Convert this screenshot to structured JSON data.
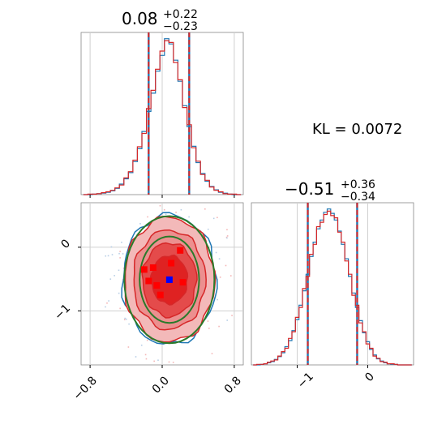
{
  "chart_data": [
    {
      "panel": "top-left",
      "type": "histogram",
      "parameter_title": {
        "value": "0.08",
        "upper": "+0.22",
        "lower": "−0.23"
      },
      "xlim": [
        -0.9,
        0.9
      ],
      "x_ticks": [
        -0.8,
        0.0,
        0.8
      ],
      "grid": true,
      "series": [
        {
          "color": "#1f77b4",
          "bin_centers": [
            -0.85,
            -0.8,
            -0.75,
            -0.7,
            -0.65,
            -0.6,
            -0.55,
            -0.5,
            -0.45,
            -0.4,
            -0.35,
            -0.3,
            -0.25,
            -0.2,
            -0.15,
            -0.1,
            -0.05,
            0.0,
            0.05,
            0.1,
            0.15,
            0.2,
            0.25,
            0.3,
            0.35,
            0.4,
            0.45,
            0.5,
            0.55,
            0.6,
            0.65,
            0.7,
            0.75,
            0.8,
            0.85
          ],
          "heights": [
            0,
            0,
            1,
            2,
            3,
            5,
            8,
            13,
            22,
            33,
            46,
            69,
            96,
            132,
            174,
            212,
            258,
            291,
            326,
            315,
            281,
            237,
            186,
            142,
            101,
            67,
            44,
            28,
            17,
            10,
            5,
            3,
            1,
            0,
            0
          ]
        },
        {
          "color": "#d62728",
          "bin_centers": [
            -0.85,
            -0.8,
            -0.75,
            -0.7,
            -0.65,
            -0.6,
            -0.55,
            -0.5,
            -0.45,
            -0.4,
            -0.35,
            -0.3,
            -0.25,
            -0.2,
            -0.15,
            -0.1,
            -0.05,
            0.0,
            0.05,
            0.1,
            0.15,
            0.2,
            0.25,
            0.3,
            0.35,
            0.4,
            0.45,
            0.5,
            0.55,
            0.6,
            0.65,
            0.7,
            0.75,
            0.8,
            0.85
          ],
          "heights": [
            0,
            1,
            1,
            2,
            4,
            6,
            9,
            14,
            20,
            35,
            48,
            72,
            100,
            128,
            180,
            218,
            262,
            300,
            322,
            318,
            276,
            240,
            182,
            146,
            98,
            70,
            42,
            30,
            16,
            9,
            6,
            2,
            1,
            1,
            0
          ]
        }
      ],
      "quantile_lines": [
        {
          "x": -0.15,
          "color": "#d62728",
          "style": "dashed"
        },
        {
          "x": 0.3,
          "color": "#d62728",
          "style": "dashed"
        }
      ]
    },
    {
      "panel": "bottom-left",
      "type": "contour",
      "xlim": [
        -0.9,
        0.9
      ],
      "ylim": [
        -1.85,
        0.7
      ],
      "x_ticks": [
        -0.8,
        0.0,
        0.8
      ],
      "y_ticks": [
        0,
        -1
      ],
      "grid": true,
      "center": {
        "x": 0.08,
        "y": -0.51
      },
      "contours": [
        {
          "color": "#1f77b4",
          "fill": "none",
          "rx": 0.52,
          "ry": 1.02
        },
        {
          "color": "#d62728",
          "fill": "#f3b9b9",
          "rx": 0.5,
          "ry": 0.98
        },
        {
          "color": "#d62728",
          "fill": "#ec8f8f",
          "rx": 0.4,
          "ry": 0.78
        },
        {
          "color": "#d62728",
          "fill": "#e44b4b",
          "rx": 0.3,
          "ry": 0.58
        },
        {
          "color": "#d62728",
          "fill": "#df2222",
          "rx": 0.2,
          "ry": 0.38
        },
        {
          "color": "#2a7a2a",
          "fill": "none",
          "rx": 0.5,
          "ry": 1.0
        },
        {
          "color": "#2a7a2a",
          "fill": "none",
          "rx": 0.33,
          "ry": 0.68
        }
      ],
      "markers": [
        {
          "x": 0.08,
          "y": -0.51,
          "color": "#0000ff"
        },
        {
          "x": -0.1,
          "y": -0.32,
          "color": "#ff0000"
        },
        {
          "x": 0.1,
          "y": -0.25,
          "color": "#ff0000"
        },
        {
          "x": 0.2,
          "y": -0.05,
          "color": "#ff0000"
        },
        {
          "x": -0.15,
          "y": -0.53,
          "color": "#ff0000"
        },
        {
          "x": 0.23,
          "y": -0.55,
          "color": "#ff0000"
        },
        {
          "x": -0.06,
          "y": -0.6,
          "color": "#ff0000"
        },
        {
          "x": -0.02,
          "y": -0.75,
          "color": "#ff0000"
        },
        {
          "x": -0.2,
          "y": -0.35,
          "color": "#ff0000"
        }
      ]
    },
    {
      "panel": "bottom-right",
      "type": "histogram",
      "parameter_title": {
        "value": "−0.51",
        "upper": "+0.36",
        "lower": "−0.34"
      },
      "xlim": [
        -1.65,
        0.65
      ],
      "x_ticks": [
        -1,
        0
      ],
      "grid": true,
      "series": [
        {
          "color": "#1f77b4",
          "bin_centers": [
            -1.6,
            -1.55,
            -1.5,
            -1.45,
            -1.4,
            -1.35,
            -1.3,
            -1.25,
            -1.2,
            -1.15,
            -1.1,
            -1.05,
            -1.0,
            -0.95,
            -0.9,
            -0.85,
            -0.8,
            -0.75,
            -0.7,
            -0.65,
            -0.6,
            -0.55,
            -0.5,
            -0.45,
            -0.4,
            -0.35,
            -0.3,
            -0.25,
            -0.2,
            -0.15,
            -0.1,
            -0.05,
            0.0,
            0.05,
            0.1,
            0.15,
            0.2,
            0.25,
            0.3,
            0.35,
            0.4,
            0.45,
            0.5,
            0.55,
            0.6
          ],
          "heights": [
            0,
            0,
            1,
            2,
            4,
            6,
            10,
            15,
            22,
            33,
            44,
            62,
            82,
            108,
            134,
            164,
            196,
            222,
            246,
            262,
            276,
            282,
            274,
            262,
            242,
            218,
            192,
            160,
            130,
            104,
            80,
            58,
            42,
            28,
            18,
            11,
            7,
            4,
            2,
            1,
            1,
            0,
            0,
            0,
            0
          ]
        },
        {
          "color": "#d62728",
          "bin_centers": [
            -1.6,
            -1.55,
            -1.5,
            -1.45,
            -1.4,
            -1.35,
            -1.3,
            -1.25,
            -1.2,
            -1.15,
            -1.1,
            -1.05,
            -1.0,
            -0.95,
            -0.9,
            -0.85,
            -0.8,
            -0.75,
            -0.7,
            -0.65,
            -0.6,
            -0.55,
            -0.5,
            -0.45,
            -0.4,
            -0.35,
            -0.3,
            -0.25,
            -0.2,
            -0.15,
            -0.1,
            -0.05,
            0.0,
            0.05,
            0.1,
            0.15,
            0.2,
            0.25,
            0.3,
            0.35,
            0.4,
            0.45,
            0.5,
            0.55,
            0.6
          ],
          "heights": [
            0,
            1,
            1,
            2,
            5,
            7,
            9,
            16,
            24,
            30,
            48,
            60,
            86,
            104,
            138,
            160,
            200,
            218,
            250,
            258,
            272,
            278,
            270,
            266,
            240,
            222,
            188,
            164,
            126,
            108,
            76,
            60,
            38,
            30,
            16,
            12,
            6,
            5,
            2,
            2,
            1,
            0,
            0,
            0,
            0
          ]
        }
      ],
      "quantile_lines": [
        {
          "x": -0.85,
          "color": "#d62728",
          "style": "dashed"
        },
        {
          "x": -0.15,
          "color": "#d62728",
          "style": "dashed"
        }
      ]
    }
  ],
  "annotation": {
    "kl_text": "KL = 0.0072"
  },
  "titles": {
    "p1_value": "0.08",
    "p1_upper": "+0.22",
    "p1_lower": "−0.23",
    "p2_value": "−0.51",
    "p2_upper": "+0.36",
    "p2_lower": "−0.34"
  },
  "tick_labels": {
    "tl_x": [
      "-0.8",
      "0.0",
      "0.8"
    ],
    "bl_x": [
      "−0.8",
      "0.0",
      "0.8"
    ],
    "bl_y": [
      "0",
      "−1"
    ],
    "br_x": [
      "−1",
      "0"
    ]
  }
}
